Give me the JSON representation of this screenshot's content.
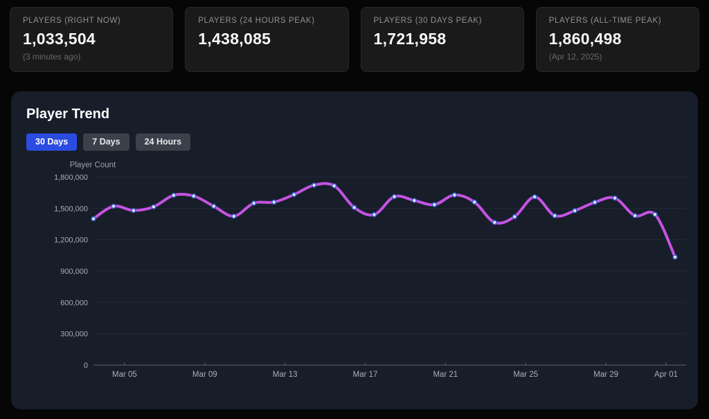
{
  "stat_cards": [
    {
      "label": "PLAYERS (RIGHT NOW)",
      "value": "1,033,504",
      "sub": "(3 minutes ago)"
    },
    {
      "label": "PLAYERS (24 HOURS PEAK)",
      "value": "1,438,085",
      "sub": ""
    },
    {
      "label": "PLAYERS (30 DAYS PEAK)",
      "value": "1,721,958",
      "sub": ""
    },
    {
      "label": "PLAYERS (ALL-TIME PEAK)",
      "value": "1,860,498",
      "sub": "(Apr 12, 2025)"
    }
  ],
  "trend_panel": {
    "title": "Player Trend",
    "tabs": [
      {
        "label": "30 Days",
        "active": true
      },
      {
        "label": "7 Days",
        "active": false
      },
      {
        "label": "24 Hours",
        "active": false
      }
    ]
  },
  "chart_data": {
    "type": "line",
    "title": "Player Trend",
    "ylabel": "Player Count",
    "x": [
      "Mar 03",
      "Mar 04",
      "Mar 05",
      "Mar 06",
      "Mar 07",
      "Mar 08",
      "Mar 09",
      "Mar 10",
      "Mar 11",
      "Mar 12",
      "Mar 13",
      "Mar 14",
      "Mar 15",
      "Mar 16",
      "Mar 17",
      "Mar 18",
      "Mar 19",
      "Mar 20",
      "Mar 21",
      "Mar 22",
      "Mar 23",
      "Mar 24",
      "Mar 25",
      "Mar 26",
      "Mar 27",
      "Mar 28",
      "Mar 29",
      "Mar 30",
      "Mar 31",
      "Apr 01"
    ],
    "values": [
      1400000,
      1520000,
      1480000,
      1515000,
      1625000,
      1618000,
      1520000,
      1425000,
      1550000,
      1560000,
      1632000,
      1721958,
      1716000,
      1508000,
      1440000,
      1612000,
      1575000,
      1535000,
      1628000,
      1560000,
      1365000,
      1420000,
      1610000,
      1430000,
      1478000,
      1558000,
      1598000,
      1430000,
      1442000,
      1033504
    ],
    "x_tick_labels": [
      "Mar 05",
      "Mar 09",
      "Mar 13",
      "Mar 17",
      "Mar 21",
      "Mar 25",
      "Mar 29",
      "Apr 01"
    ],
    "y_ticks": [
      0,
      300000,
      600000,
      900000,
      1200000,
      1500000,
      1800000
    ],
    "ylim": [
      0,
      1800000
    ],
    "grid": true,
    "legend": "none",
    "colors": {
      "line": "#c553e2",
      "point_fill": "#e8f1ff",
      "point_stroke": "#4062d6",
      "axis_line": "#5a6270",
      "grid_line": "#222a37",
      "tick_text": "#a7aeb8",
      "axis_label_text": "#9aa2ac"
    }
  }
}
